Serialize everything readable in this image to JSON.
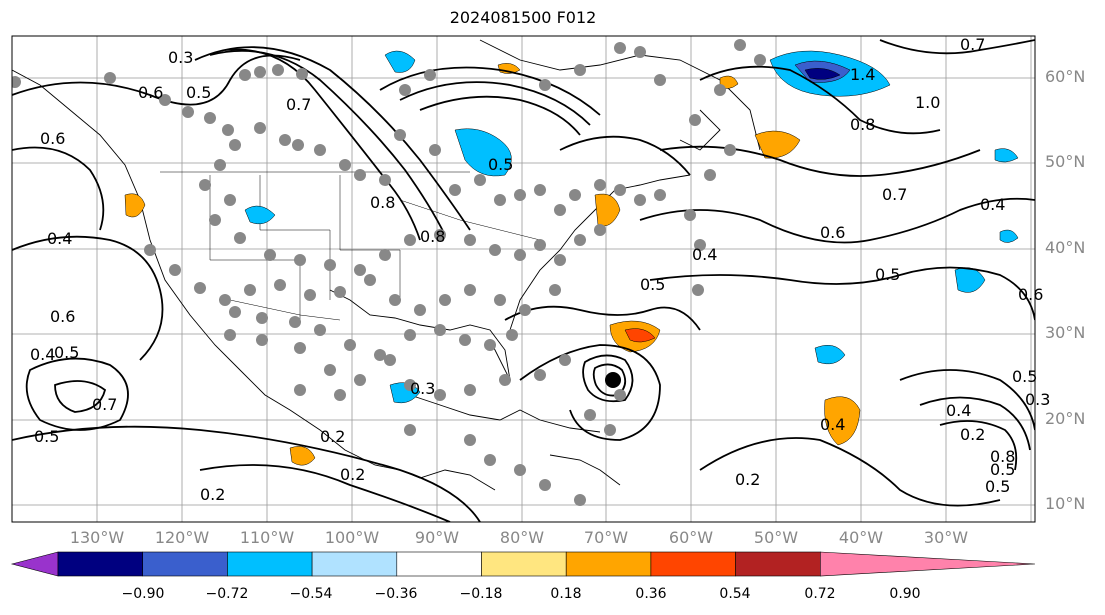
{
  "title": "2024081500 F012",
  "lat_labels": [
    "60°N",
    "50°N",
    "40°N",
    "30°N",
    "20°N",
    "10°N"
  ],
  "lon_labels": [
    "130°W",
    "120°W",
    "110°W",
    "100°W",
    "90°W",
    "80°W",
    "70°W",
    "60°W",
    "50°W",
    "40°W",
    "30°W"
  ],
  "contour_labels": [
    "0.3",
    "0.6",
    "0.5",
    "0.6",
    "0.7",
    "0.4",
    "0.6",
    "0.4",
    "0.5",
    "0.7",
    "0.5",
    "0.2",
    "0.2",
    "0.2",
    "0.3",
    "0.8",
    "0.8",
    "0.5",
    "0.5",
    "0.4",
    "0.2",
    "0.4",
    "1.4",
    "1.0",
    "0.8",
    "0.7",
    "0.6",
    "0.7",
    "0.4",
    "0.5",
    "0.6",
    "0.5",
    "0.4",
    "0.2",
    "0.5",
    "0.3",
    "0.8",
    "0.5"
  ],
  "colorbar": {
    "ticks": [
      "−0.90",
      "−0.72",
      "−0.54",
      "−0.36",
      "−0.18",
      "0.18",
      "0.36",
      "0.54",
      "0.72",
      "0.90"
    ],
    "colors": [
      "#9933cc",
      "#000080",
      "#3a5fcd",
      "#00bfff",
      "#b0e2ff",
      "#ffffff",
      "#ffe680",
      "#ffa500",
      "#ff4500",
      "#b22222",
      "#ff82ab"
    ]
  }
}
